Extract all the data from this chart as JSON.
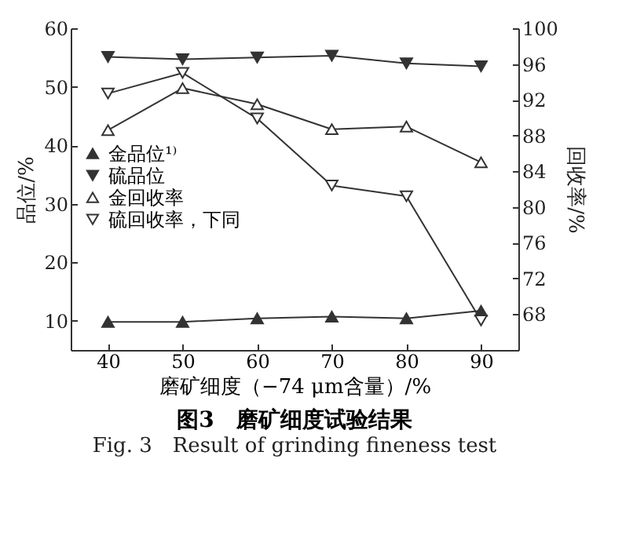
{
  "chart_data": {
    "type": "line",
    "title": "图3　磨矿细度试验结果",
    "subtitle": "Fig. 3　Result of grinding fineness test",
    "xlabel": "磨矿细度（−74 μm含量）/%",
    "ylabel": "品位/%",
    "y2label": "回收率/%",
    "x": [
      40,
      50,
      60,
      70,
      80,
      90
    ],
    "series": [
      {
        "name": "金品位¹⁾",
        "color": "#333333",
        "marker": "triangle",
        "values": [
          9.8,
          9.8,
          10.4,
          10.7,
          10.4,
          11.7
        ]
      },
      {
        "name": "硫品位",
        "color": "#333333",
        "marker": "triangle-down",
        "values": [
          55.1,
          54.7,
          55.0,
          55.3,
          54.0,
          53.5
        ]
      },
      {
        "name": "金回收率",
        "color": "#333333",
        "marker": "triangle-open",
        "axis": "y2",
        "values": [
          88.6,
          93.3,
          91.5,
          88.7,
          89.0,
          85.0
        ]
      },
      {
        "name": "硫回收率，下同",
        "color": "#333333",
        "marker": "triangle-down-open",
        "axis": "y2",
        "values": [
          92.7,
          95.0,
          89.9,
          82.4,
          81.2,
          67.3
        ]
      }
    ],
    "xlim": [
      35,
      95
    ],
    "xticks": [
      40,
      50,
      60,
      70,
      80,
      90
    ],
    "ylim": [
      5,
      60
    ],
    "yticks": [
      10,
      20,
      30,
      40,
      50,
      60
    ],
    "y2lim": [
      64,
      100
    ],
    "y2ticks": [
      68,
      72,
      76,
      80,
      84,
      88,
      92,
      96,
      100
    ],
    "legend": "left",
    "grid": false
  }
}
